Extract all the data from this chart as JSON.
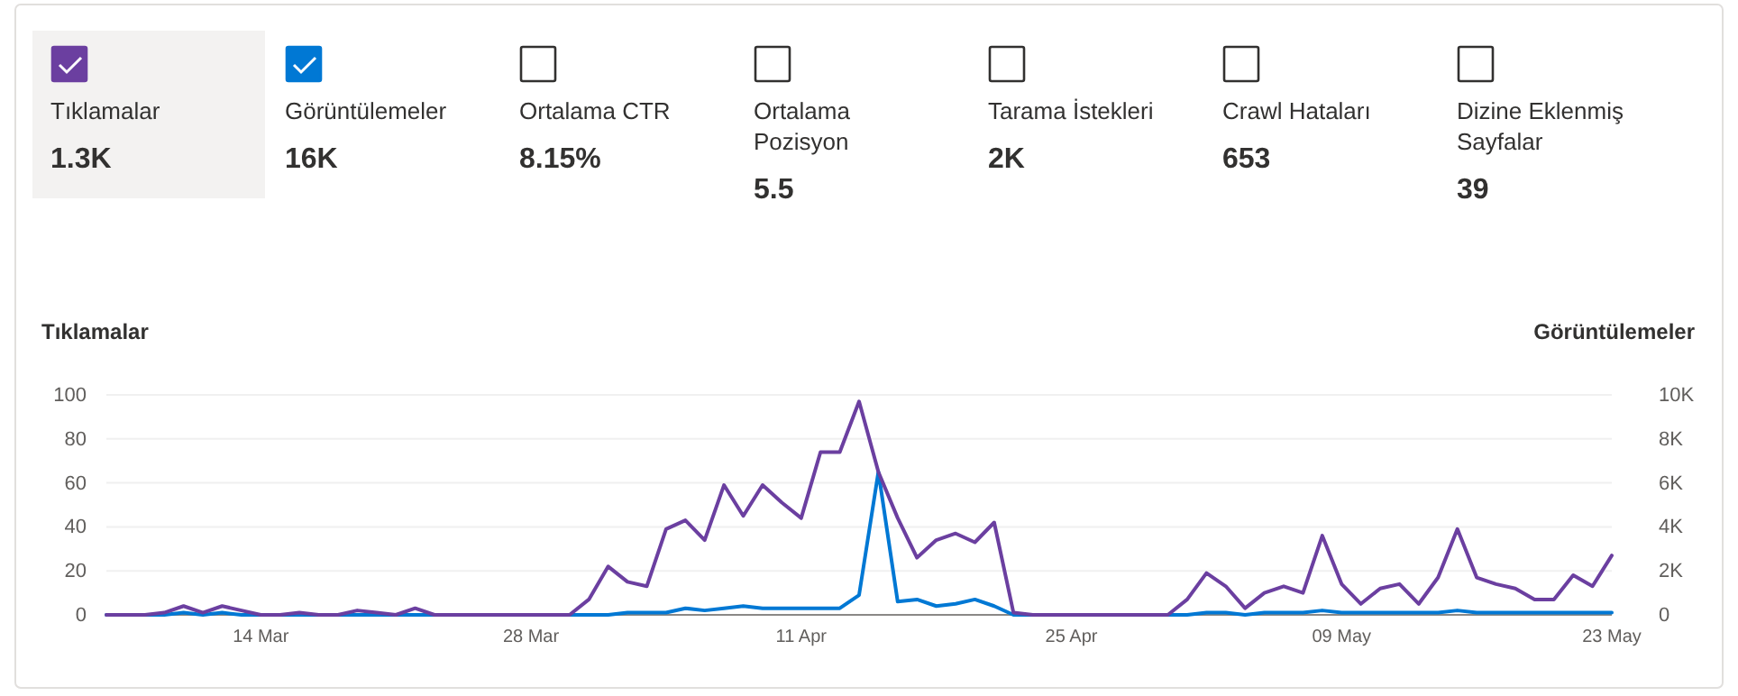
{
  "chart_data": [
    {
      "type": "other",
      "categories": [
        "Tıklamalar",
        "Görüntülemeler",
        "Ortalama CTR",
        "Ortalama Pozisyon",
        "Tarama İstekleri",
        "Crawl Hataları",
        "Dizine Eklenmiş Sayfalar"
      ],
      "value_labels": [
        "1.3K",
        "16K",
        "8.15%",
        "5.5",
        "2K",
        "653",
        "39"
      ]
    },
    {
      "type": "line",
      "ylabel": "Tıklamalar",
      "y2label": "Görüntülemeler",
      "x": [
        "--03-06",
        "--03-07",
        "--03-08",
        "--03-09",
        "--03-10",
        "--03-11",
        "--03-12",
        "--03-13",
        "--03-14",
        "--03-15",
        "--03-16",
        "--03-17",
        "--03-18",
        "--03-19",
        "--03-20",
        "--03-21",
        "--03-22",
        "--03-23",
        "--03-24",
        "--03-25",
        "--03-26",
        "--03-27",
        "--03-28",
        "--03-29",
        "--03-30",
        "--03-31",
        "--04-01",
        "--04-02",
        "--04-03",
        "--04-04",
        "--04-05",
        "--04-06",
        "--04-07",
        "--04-08",
        "--04-09",
        "--04-10",
        "--04-11",
        "--04-12",
        "--04-13",
        "--04-14",
        "--04-15",
        "--04-16",
        "--04-17",
        "--04-18",
        "--04-19",
        "--04-20",
        "--04-21",
        "--04-22",
        "--04-23",
        "--04-24",
        "--04-25",
        "--04-26",
        "--04-27",
        "--04-28",
        "--04-29",
        "--04-30",
        "--05-01",
        "--05-02",
        "--05-03",
        "--05-04",
        "--05-05",
        "--05-06",
        "--05-07",
        "--05-08",
        "--05-09",
        "--05-10",
        "--05-11",
        "--05-12",
        "--05-13",
        "--05-14",
        "--05-15",
        "--05-16",
        "--05-17",
        "--05-18",
        "--05-19",
        "--05-20",
        "--05-21",
        "--05-22",
        "--05-23"
      ],
      "series": [
        {
          "color": "#6b3fa0",
          "values": [
            0,
            0,
            0,
            1,
            4,
            1,
            4,
            2,
            0,
            0,
            1,
            0,
            0,
            2,
            1,
            0,
            3,
            0,
            0,
            0,
            0,
            0,
            0,
            0,
            0,
            7,
            22,
            15,
            13,
            39,
            43,
            34,
            59,
            45,
            59,
            51,
            44,
            74,
            74,
            97,
            65,
            44,
            26,
            34,
            37,
            33,
            42,
            1,
            0,
            0,
            0,
            0,
            0,
            0,
            0,
            0,
            7,
            19,
            13,
            3,
            10,
            13,
            10,
            36,
            14,
            5,
            12,
            14,
            5,
            17,
            39,
            17,
            14,
            12,
            7,
            7,
            18,
            13,
            27
          ]
        },
        {
          "color": "#0078d4",
          "axis": "y2",
          "values": [
            0,
            0,
            0,
            0,
            100,
            0,
            100,
            0,
            0,
            0,
            0,
            0,
            0,
            0,
            0,
            0,
            0,
            0,
            0,
            0,
            0,
            0,
            0,
            0,
            0,
            0,
            0,
            100,
            100,
            100,
            300,
            200,
            300,
            400,
            300,
            300,
            300,
            300,
            300,
            900,
            6500,
            600,
            700,
            400,
            500,
            700,
            400,
            0,
            0,
            0,
            0,
            0,
            0,
            0,
            0,
            0,
            0,
            100,
            100,
            0,
            100,
            100,
            100,
            200,
            100,
            100,
            100,
            100,
            100,
            100,
            200,
            100,
            100,
            100,
            100,
            100,
            100,
            100,
            100
          ]
        }
      ],
      "xlim": [
        "--03-06",
        "--05-23"
      ],
      "xticks": [
        {
          "value": "--03-14",
          "label": "14 Mar"
        },
        {
          "value": "--03-28",
          "label": "28 Mar"
        },
        {
          "value": "--04-11",
          "label": "11 Apr"
        },
        {
          "value": "--04-25",
          "label": "25 Apr"
        },
        {
          "value": "--05-09",
          "label": "09 May"
        },
        {
          "value": "--05-23",
          "label": "23 May"
        }
      ],
      "ylim": [
        0,
        100
      ],
      "yticks": [
        0,
        20,
        40,
        60,
        80,
        100
      ],
      "y2lim": [
        0,
        10000
      ],
      "y2ticks": [
        0,
        {
          "value": 2000,
          "label": "2K"
        },
        {
          "value": 4000,
          "label": "4K"
        },
        {
          "value": 6000,
          "label": "6K"
        },
        {
          "value": 8000,
          "label": "8K"
        },
        {
          "value": 10000,
          "label": "10K"
        }
      ],
      "grid": "y"
    }
  ]
}
